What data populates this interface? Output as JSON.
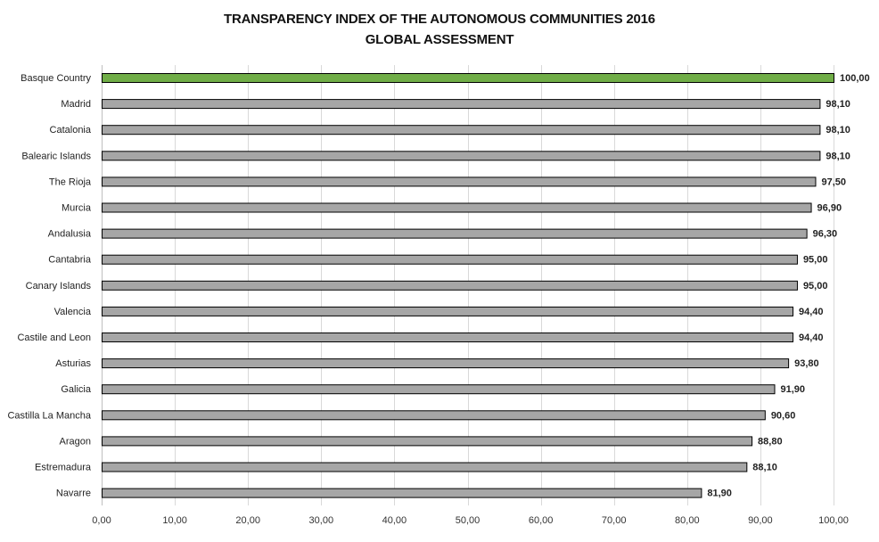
{
  "chart_data": {
    "type": "bar",
    "orientation": "horizontal",
    "title": "TRANSPARENCY INDEX OF THE AUTONOMOUS COMMUNITIES 2016",
    "subtitle": "GLOBAL ASSESSMENT",
    "categories": [
      "Basque Country",
      "Madrid",
      "Catalonia",
      "Balearic Islands",
      "The Rioja",
      "Murcia",
      "Andalusia",
      "Cantabria",
      "Canary Islands",
      "Valencia",
      "Castile and Leon",
      "Asturias",
      "Galicia",
      "Castilla La Mancha",
      "Aragon",
      "Estremadura",
      "Navarre"
    ],
    "values": [
      100.0,
      98.1,
      98.1,
      98.1,
      97.5,
      96.9,
      96.3,
      95.0,
      95.0,
      94.4,
      94.4,
      93.8,
      91.9,
      90.6,
      88.8,
      88.1,
      81.9
    ],
    "value_labels": [
      "100,00",
      "98,10",
      "98,10",
      "98,10",
      "97,50",
      "96,90",
      "96,30",
      "95,00",
      "95,00",
      "94,40",
      "94,40",
      "93,80",
      "91,90",
      "90,60",
      "88,80",
      "88,10",
      "81,90"
    ],
    "xlim": [
      0,
      100
    ],
    "xticks": [
      0,
      10,
      20,
      30,
      40,
      50,
      60,
      70,
      80,
      90,
      100
    ],
    "xtick_labels": [
      "0,00",
      "10,00",
      "20,00",
      "30,00",
      "40,00",
      "50,00",
      "60,00",
      "70,00",
      "80,00",
      "90,00",
      "100,00"
    ],
    "grid": true,
    "highlight_index": 0,
    "colors": {
      "highlight": "#70ad47",
      "bar": "#a6a6a6",
      "bar_border": "#000000",
      "grid": "#d9d9d9",
      "axis": "#bfbfbf"
    }
  }
}
